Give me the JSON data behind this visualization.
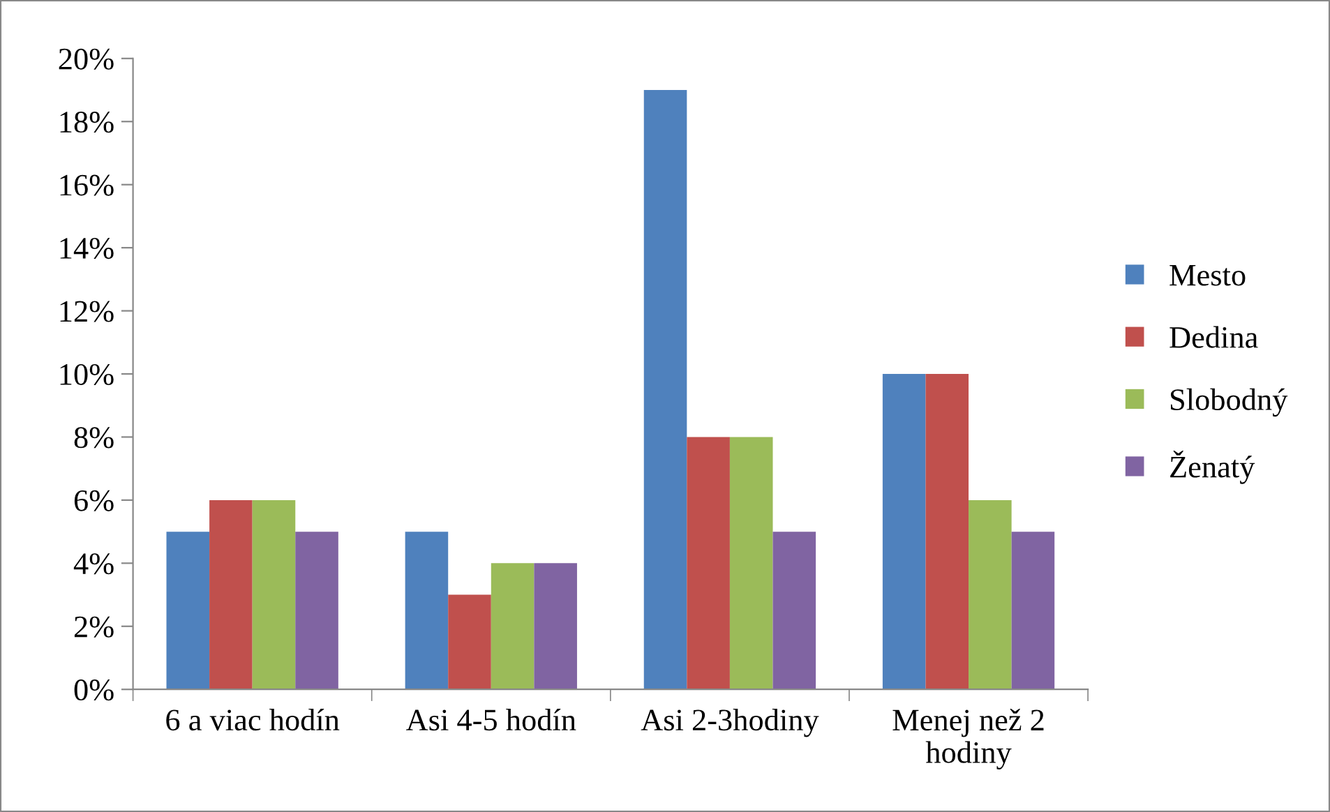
{
  "chart_data": {
    "type": "bar",
    "categories": [
      "6 a viac hodín",
      "Asi 4-5 hodín",
      "Asi 2-3hodiny",
      "Menej než 2\nhodiny"
    ],
    "series": [
      {
        "name": "Mesto",
        "color": "#4f81bd",
        "values": [
          5,
          5,
          19,
          10
        ]
      },
      {
        "name": "Dedina",
        "color": "#c0504d",
        "values": [
          6,
          3,
          8,
          10
        ]
      },
      {
        "name": "Slobodný",
        "color": "#9bbb59",
        "values": [
          6,
          4,
          8,
          6
        ]
      },
      {
        "name": "Ženatý",
        "color": "#8064a2",
        "values": [
          5,
          4,
          5,
          5
        ]
      }
    ],
    "ylim": [
      0,
      20
    ],
    "yticks": [
      {
        "value": 0,
        "label": "0%"
      },
      {
        "value": 2,
        "label": "2%"
      },
      {
        "value": 4,
        "label": "4%"
      },
      {
        "value": 6,
        "label": "6%"
      },
      {
        "value": 8,
        "label": "8%"
      },
      {
        "value": 10,
        "label": "10%"
      },
      {
        "value": 12,
        "label": "12%"
      },
      {
        "value": 14,
        "label": "14%"
      },
      {
        "value": 16,
        "label": "16%"
      },
      {
        "value": 18,
        "label": "18%"
      },
      {
        "value": 20,
        "label": "20%"
      }
    ],
    "grid": false,
    "legend": "right"
  }
}
